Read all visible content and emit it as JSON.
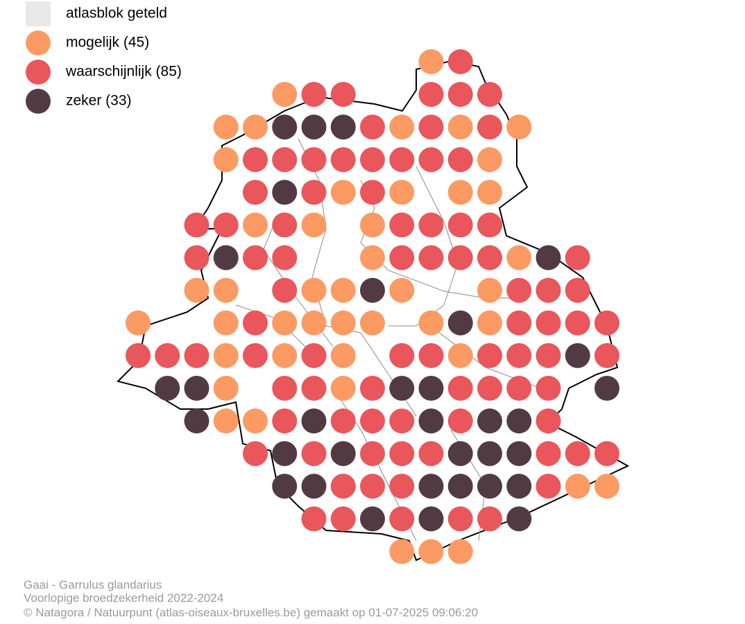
{
  "legend": {
    "items": [
      {
        "label": "atlasblok geteld",
        "color": "#e8e8e8"
      },
      {
        "label": "mogelijk (45)",
        "color": "#fc9a63"
      },
      {
        "label": "waarschijnlijk (85)",
        "color": "#e9565b"
      },
      {
        "label": "zeker (33)",
        "color": "#523a43"
      }
    ]
  },
  "map": {
    "rows": [
      "----------12-----",
      "-----122--222----",
      "---11333212121---",
      "---1222222221----",
      "----232121-11----",
      "--22121-12222----",
      "--2322--12222132-",
      "--11-21131--1222-",
      "1--121111-1312222",
      "22212121-22122232",
      "-331-2212332222-3",
      "--3112322232332--",
      "----2323222333222",
      "-----332223333211",
      "------22323223---",
      "---------111-----"
    ]
  },
  "caption": {
    "species": "Gaai - Garrulus glandarius",
    "subtitle": "Voorlopige broedzekerheid 2022-2024",
    "credit": "© Natagora / Natuurpunt (atlas-oiseaux-bruxelles.be) gemaakt op 01-07-2025 09:06:20"
  }
}
